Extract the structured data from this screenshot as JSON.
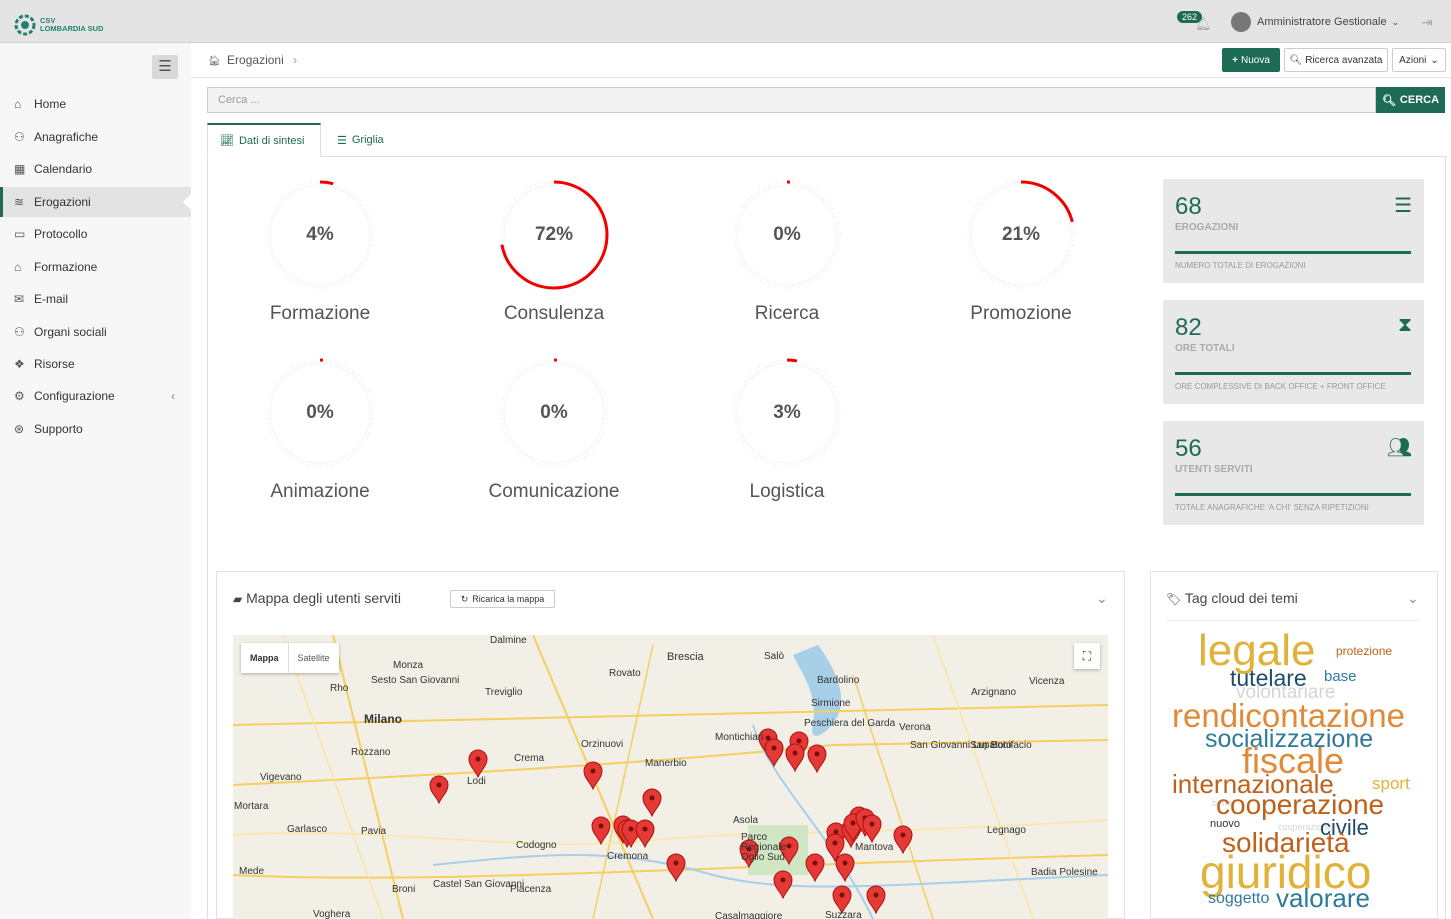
{
  "topbar": {
    "logo_line1": "CSV",
    "logo_line2": "LOMBARDIA SUD",
    "notif_count": "262",
    "user_name": "Amministratore Gestionale"
  },
  "sidebar": {
    "items": [
      {
        "label": "Home",
        "icon": "home-icon",
        "glyph": "⌂"
      },
      {
        "label": "Anagrafiche",
        "icon": "users-icon",
        "glyph": "⚇"
      },
      {
        "label": "Calendario",
        "icon": "calendar-icon",
        "glyph": "▦"
      },
      {
        "label": "Erogazioni",
        "icon": "layers-icon",
        "glyph": "≋"
      },
      {
        "label": "Protocollo",
        "icon": "folder-icon",
        "glyph": "▭"
      },
      {
        "label": "Formazione",
        "icon": "graduation-cap-icon",
        "glyph": "⌂"
      },
      {
        "label": "E-mail",
        "icon": "mail-icon",
        "glyph": "✉"
      },
      {
        "label": "Organi sociali",
        "icon": "user-group-icon",
        "glyph": "⚇"
      },
      {
        "label": "Risorse",
        "icon": "cubes-icon",
        "glyph": "❖"
      },
      {
        "label": "Configurazione",
        "icon": "gear-icon",
        "glyph": "⚙"
      },
      {
        "label": "Supporto",
        "icon": "lifebuoy-icon",
        "glyph": "⊛"
      }
    ]
  },
  "breadcrumb": {
    "label": "Erogazioni"
  },
  "actions": {
    "new_label": "Nuova",
    "advanced_label": "Ricerca avanzata",
    "actions_label": "Azioni"
  },
  "search": {
    "placeholder": "Cerca ...",
    "button_label": "CERCA"
  },
  "tabs": [
    {
      "label": "Dati di sintesi"
    },
    {
      "label": "Griglia"
    }
  ],
  "gauges": [
    {
      "label": "Formazione",
      "value": "4%",
      "pct": 4
    },
    {
      "label": "Consulenza",
      "value": "72%",
      "pct": 72
    },
    {
      "label": "Ricerca",
      "value": "0%",
      "pct": 0
    },
    {
      "label": "Promozione",
      "value": "21%",
      "pct": 21
    },
    {
      "label": "Animazione",
      "value": "0%",
      "pct": 0
    },
    {
      "label": "Comunicazione",
      "value": "0%",
      "pct": 0
    },
    {
      "label": "Logistica",
      "value": "3%",
      "pct": 3
    }
  ],
  "stats": [
    {
      "number": "68",
      "title": "EROGAZIONI",
      "desc": "NUMERO TOTALE DI EROGAZIONI",
      "icon": "server-icon"
    },
    {
      "number": "82",
      "title": "ORE TOTALI",
      "desc": "ORE COMPLESSIVE DI BACK OFFICE + FRONT OFFICE",
      "icon": "hourglass-icon"
    },
    {
      "number": "56",
      "title": "UTENTI SERVITI",
      "desc": "TOTALE ANAGRAFICHE 'A CHI' SENZA RIPETIZIONI",
      "icon": "users-icon"
    }
  ],
  "map_box": {
    "title": "Mappa degli utenti serviti",
    "reload_label": "Ricarica la mappa",
    "toggle_map": "Mappa",
    "toggle_satellite": "Satellite",
    "cities": [
      "Dalmine",
      "Monza",
      "Sesto San Giovanni",
      "Rho",
      "Milano",
      "Treviglio",
      "Rovato",
      "Brescia",
      "Salò",
      "Bardolino",
      "Sirmione",
      "Peschiera del Garda",
      "Verona",
      "Vicenza",
      "Arzignano",
      "San Bonifacio",
      "San Giovanni Lupatoto",
      "Rozzano",
      "Lodi",
      "Crema",
      "Orzinuovi",
      "Manerbio",
      "Montichiari",
      "Vigevano",
      "Mortara",
      "Garlasco",
      "Pavia",
      "Codogno",
      "Cremona",
      "Asola",
      "Parco Regionale Oglio Sud",
      "Mantova",
      "Legnago",
      "Badia Polesine",
      "Mede",
      "Broni",
      "Castel San Giovanni",
      "Piacenza",
      "Voghera",
      "Casalmaggiore",
      "Suzzara"
    ]
  },
  "tag_box": {
    "title": "Tag cloud dei temi",
    "words": [
      {
        "text": "legale",
        "color": "#e0b23a"
      },
      {
        "text": "protezione",
        "color": "#c0601a"
      },
      {
        "text": "tutelare",
        "color": "#1e4d6b"
      },
      {
        "text": "base",
        "color": "#2f7a9a"
      },
      {
        "text": "volontariare",
        "color": "#d5d5d5"
      },
      {
        "text": "rendicontazione",
        "color": "#e08a3a"
      },
      {
        "text": "socializzazione",
        "color": "#2f7a9a"
      },
      {
        "text": "fiscale",
        "color": "#e08a3a"
      },
      {
        "text": "internazionale",
        "color": "#c0601a"
      },
      {
        "text": "sport",
        "color": "#e0b23a"
      },
      {
        "text": "bene",
        "color": "#d5d5d5"
      },
      {
        "text": "cooperazione",
        "color": "#c0601a"
      },
      {
        "text": "nuovo",
        "color": "#333333"
      },
      {
        "text": "cooperazione",
        "color": "#d5d5d5"
      },
      {
        "text": "civile",
        "color": "#1e4d6b"
      },
      {
        "text": "solidarietà",
        "color": "#c0601a"
      },
      {
        "text": "giuridico",
        "color": "#e0b23a"
      },
      {
        "text": "soggetto",
        "color": "#2f7a9a"
      },
      {
        "text": "valorare",
        "color": "#2f7a9a"
      }
    ]
  }
}
